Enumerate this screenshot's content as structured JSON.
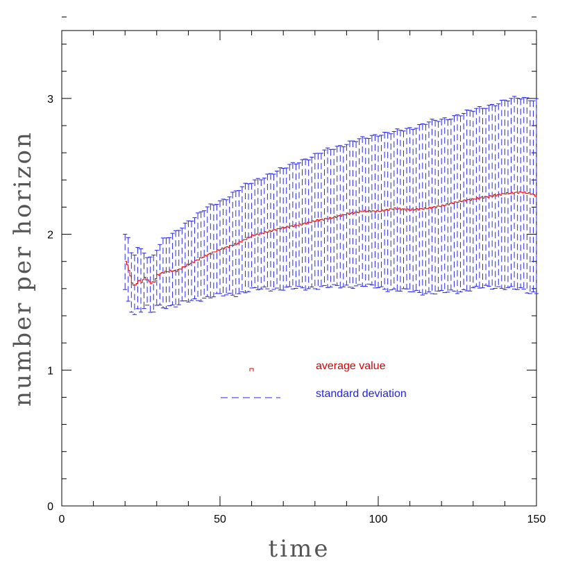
{
  "chart_data": {
    "type": "line",
    "title": "",
    "xlabel": "time",
    "ylabel": "number per horizon",
    "xlim": [
      0,
      150
    ],
    "ylim": [
      0,
      3.5
    ],
    "x_ticks": [
      0,
      50,
      100,
      150
    ],
    "y_ticks": [
      0,
      1,
      2,
      3
    ],
    "x_tick_labels": [
      "0",
      "50",
      "100",
      "150"
    ],
    "y_tick_labels": [
      "0",
      "1",
      "2",
      "3"
    ],
    "x_minor_step": 10,
    "y_minor_step": 0.2,
    "grid": false,
    "legend_position": "center",
    "series": [
      {
        "name": "average value",
        "color": "#dd0000",
        "style": "solid-steps",
        "x": [
          20,
          21,
          22,
          23,
          24,
          25,
          26,
          27,
          28,
          29,
          30,
          32,
          34,
          36,
          40,
          45,
          50,
          55,
          60,
          65,
          70,
          75,
          80,
          85,
          90,
          95,
          100,
          105,
          110,
          115,
          120,
          125,
          130,
          135,
          140,
          145,
          148,
          150
        ],
        "values": [
          1.8,
          1.74,
          1.64,
          1.62,
          1.66,
          1.65,
          1.68,
          1.66,
          1.64,
          1.65,
          1.7,
          1.72,
          1.73,
          1.73,
          1.78,
          1.84,
          1.89,
          1.93,
          1.99,
          2.02,
          2.05,
          2.07,
          2.1,
          2.12,
          2.15,
          2.17,
          2.17,
          2.19,
          2.18,
          2.19,
          2.21,
          2.24,
          2.26,
          2.28,
          2.3,
          2.31,
          2.3,
          2.28
        ]
      },
      {
        "name": "standard deviation",
        "color": "#2222ee",
        "style": "dashed-errorbars",
        "x": [
          20,
          21,
          22,
          23,
          24,
          25,
          26,
          27,
          28,
          29,
          30,
          32,
          34,
          36,
          40,
          45,
          50,
          55,
          60,
          65,
          70,
          75,
          80,
          85,
          90,
          95,
          100,
          105,
          110,
          115,
          120,
          125,
          130,
          135,
          140,
          145,
          148,
          150
        ],
        "upper": [
          2.0,
          1.96,
          1.86,
          1.85,
          1.89,
          1.88,
          1.87,
          1.84,
          1.83,
          1.85,
          1.9,
          1.96,
          1.98,
          2.01,
          2.1,
          2.18,
          2.24,
          2.32,
          2.38,
          2.44,
          2.48,
          2.54,
          2.58,
          2.63,
          2.67,
          2.7,
          2.74,
          2.75,
          2.78,
          2.82,
          2.84,
          2.88,
          2.91,
          2.95,
          2.98,
          3.01,
          3.0,
          2.99
        ],
        "lower": [
          1.59,
          1.52,
          1.44,
          1.4,
          1.44,
          1.43,
          1.45,
          1.46,
          1.42,
          1.44,
          1.48,
          1.47,
          1.47,
          1.47,
          1.51,
          1.53,
          1.55,
          1.56,
          1.59,
          1.6,
          1.6,
          1.6,
          1.61,
          1.61,
          1.62,
          1.62,
          1.61,
          1.59,
          1.58,
          1.57,
          1.57,
          1.58,
          1.6,
          1.61,
          1.61,
          1.59,
          1.57,
          1.57
        ]
      }
    ]
  }
}
